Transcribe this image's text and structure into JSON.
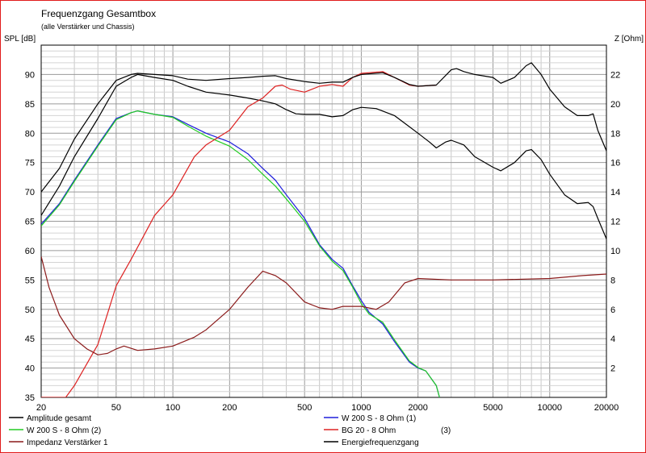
{
  "chart_data": {
    "type": "line",
    "title": "Frequenzgang Gesamtbox",
    "subtitle": "(alle Verstärker und Chassis)",
    "y_left_label": "SPL [dB]",
    "y_right_label": "Z [Ohm]",
    "x_scale": "log",
    "xlim": [
      20,
      20000
    ],
    "ylim_left": [
      35,
      95
    ],
    "ylim_right": [
      0,
      24
    ],
    "grid": true,
    "x_ticks": [
      20,
      50,
      100,
      200,
      500,
      1000,
      2000,
      5000,
      10000,
      20000
    ],
    "y_left_ticks": [
      35,
      40,
      45,
      50,
      55,
      60,
      65,
      70,
      75,
      80,
      85,
      90
    ],
    "y_right_ticks": [
      2,
      4,
      6,
      8,
      10,
      12,
      14,
      16,
      18,
      20,
      22
    ],
    "legend_position": "bottom",
    "series": [
      {
        "name": "Amplitude gesamt",
        "color": "#000000",
        "axis": "left",
        "points": [
          [
            20,
            66
          ],
          [
            25,
            71
          ],
          [
            30,
            76
          ],
          [
            40,
            82.5
          ],
          [
            50,
            88
          ],
          [
            60,
            89.5
          ],
          [
            65,
            90
          ],
          [
            80,
            89.5
          ],
          [
            100,
            89
          ],
          [
            120,
            88
          ],
          [
            150,
            87
          ],
          [
            200,
            86.5
          ],
          [
            250,
            86
          ],
          [
            300,
            85.5
          ],
          [
            350,
            85
          ],
          [
            400,
            84
          ],
          [
            450,
            83.3
          ],
          [
            500,
            83.2
          ],
          [
            600,
            83.2
          ],
          [
            700,
            82.8
          ],
          [
            800,
            83
          ],
          [
            900,
            84
          ],
          [
            1000,
            84.4
          ],
          [
            1200,
            84.2
          ],
          [
            1500,
            83
          ],
          [
            2000,
            80
          ],
          [
            2300,
            78.5
          ],
          [
            2500,
            77.5
          ],
          [
            2800,
            78.5
          ],
          [
            3000,
            78.8
          ],
          [
            3500,
            78
          ],
          [
            4000,
            76
          ],
          [
            5000,
            74.2
          ],
          [
            5500,
            73.6
          ],
          [
            6500,
            75
          ],
          [
            7500,
            77
          ],
          [
            8000,
            77.2
          ],
          [
            9000,
            75.5
          ],
          [
            10000,
            73
          ],
          [
            12000,
            69.5
          ],
          [
            14000,
            68
          ],
          [
            16000,
            68.2
          ],
          [
            17000,
            67.5
          ],
          [
            18000,
            65.5
          ],
          [
            20000,
            62
          ]
        ]
      },
      {
        "name": "W 200 S - 8 Ohm (1)",
        "color": "#1e1edc",
        "axis": "left",
        "points": [
          [
            20,
            64.5
          ],
          [
            25,
            68
          ],
          [
            30,
            72
          ],
          [
            40,
            78
          ],
          [
            50,
            82.5
          ],
          [
            60,
            83.5
          ],
          [
            65,
            83.8
          ],
          [
            80,
            83.2
          ],
          [
            100,
            82.8
          ],
          [
            120,
            81.5
          ],
          [
            150,
            80
          ],
          [
            200,
            78.5
          ],
          [
            250,
            76.5
          ],
          [
            300,
            74
          ],
          [
            350,
            72
          ],
          [
            400,
            69.5
          ],
          [
            500,
            65.5
          ],
          [
            600,
            61
          ],
          [
            700,
            58.5
          ],
          [
            800,
            57
          ],
          [
            900,
            54
          ],
          [
            1000,
            51.5
          ],
          [
            1100,
            49.5
          ],
          [
            1300,
            47.5
          ],
          [
            1500,
            44.5
          ],
          [
            1800,
            41
          ],
          [
            2000,
            40
          ],
          [
            2200,
            39.5
          ],
          [
            2500,
            37
          ],
          [
            2600,
            35
          ]
        ]
      },
      {
        "name": "W 200 S - 8 Ohm (2)",
        "color": "#22cc22",
        "axis": "left",
        "points": [
          [
            20,
            64.2
          ],
          [
            25,
            67.8
          ],
          [
            30,
            71.8
          ],
          [
            40,
            77.8
          ],
          [
            50,
            82.3
          ],
          [
            60,
            83.5
          ],
          [
            65,
            83.8
          ],
          [
            80,
            83.2
          ],
          [
            100,
            82.7
          ],
          [
            120,
            81.2
          ],
          [
            150,
            79.5
          ],
          [
            200,
            77.8
          ],
          [
            250,
            75.5
          ],
          [
            300,
            73
          ],
          [
            350,
            71
          ],
          [
            400,
            68.8
          ],
          [
            500,
            65
          ],
          [
            600,
            60.8
          ],
          [
            700,
            58.2
          ],
          [
            800,
            56.6
          ],
          [
            900,
            53.8
          ],
          [
            1000,
            51
          ],
          [
            1100,
            49.2
          ],
          [
            1300,
            47.8
          ],
          [
            1500,
            44.8
          ],
          [
            1800,
            41.2
          ],
          [
            2000,
            40.1
          ],
          [
            2200,
            39.5
          ],
          [
            2500,
            37
          ],
          [
            2600,
            35
          ]
        ]
      },
      {
        "name": "BG 20 - 8 Ohm",
        "color": "#dd2222",
        "axis": "left",
        "points": [
          [
            20,
            35
          ],
          [
            27,
            35
          ],
          [
            30,
            37
          ],
          [
            40,
            44
          ],
          [
            50,
            54
          ],
          [
            60,
            58.5
          ],
          [
            70,
            62.5
          ],
          [
            80,
            66
          ],
          [
            100,
            69.5
          ],
          [
            130,
            76
          ],
          [
            150,
            78
          ],
          [
            200,
            80.5
          ],
          [
            250,
            84.5
          ],
          [
            300,
            86
          ],
          [
            350,
            88
          ],
          [
            380,
            88.2
          ],
          [
            420,
            87.5
          ],
          [
            500,
            87
          ],
          [
            600,
            88
          ],
          [
            700,
            88.3
          ],
          [
            800,
            88
          ],
          [
            900,
            89.5
          ],
          [
            1000,
            90.2
          ],
          [
            1300,
            90.5
          ],
          [
            1500,
            89.5
          ],
          [
            1800,
            88.2
          ],
          [
            2000,
            88
          ],
          [
            2500,
            88.2
          ]
        ]
      },
      {
        "name": "Impedanz Verstärker 1",
        "color": "#8b1a1a",
        "axis": "right",
        "points": [
          [
            20,
            9.6
          ],
          [
            22,
            7.5
          ],
          [
            25,
            5.6
          ],
          [
            30,
            4
          ],
          [
            35,
            3.3
          ],
          [
            40,
            2.9
          ],
          [
            45,
            3
          ],
          [
            50,
            3.3
          ],
          [
            55,
            3.5
          ],
          [
            65,
            3.2
          ],
          [
            80,
            3.3
          ],
          [
            100,
            3.5
          ],
          [
            130,
            4.1
          ],
          [
            150,
            4.6
          ],
          [
            200,
            6
          ],
          [
            250,
            7.5
          ],
          [
            300,
            8.6
          ],
          [
            350,
            8.3
          ],
          [
            400,
            7.8
          ],
          [
            500,
            6.5
          ],
          [
            600,
            6.1
          ],
          [
            700,
            6
          ],
          [
            800,
            6.2
          ],
          [
            1000,
            6.2
          ],
          [
            1200,
            6
          ],
          [
            1400,
            6.5
          ],
          [
            1700,
            7.8
          ],
          [
            2000,
            8.1
          ],
          [
            3000,
            8
          ],
          [
            5000,
            8
          ],
          [
            10000,
            8.1
          ],
          [
            15000,
            8.3
          ],
          [
            20000,
            8.4
          ]
        ]
      },
      {
        "name": "Energiefrequenzgang",
        "color": "#000000",
        "axis": "left",
        "points": [
          [
            20,
            70
          ],
          [
            25,
            74
          ],
          [
            30,
            79
          ],
          [
            40,
            85
          ],
          [
            50,
            89
          ],
          [
            60,
            90
          ],
          [
            65,
            90.2
          ],
          [
            80,
            90
          ],
          [
            100,
            89.8
          ],
          [
            120,
            89.2
          ],
          [
            150,
            89
          ],
          [
            200,
            89.3
          ],
          [
            250,
            89.5
          ],
          [
            300,
            89.7
          ],
          [
            350,
            89.8
          ],
          [
            400,
            89.3
          ],
          [
            500,
            88.8
          ],
          [
            600,
            88.5
          ],
          [
            700,
            88.7
          ],
          [
            800,
            88.7
          ],
          [
            900,
            89.5
          ],
          [
            1000,
            90
          ],
          [
            1300,
            90.3
          ],
          [
            1500,
            89.5
          ],
          [
            1800,
            88.3
          ],
          [
            2000,
            88
          ],
          [
            2500,
            88.2
          ],
          [
            3000,
            90.8
          ],
          [
            3200,
            91
          ],
          [
            3500,
            90.5
          ],
          [
            4000,
            90
          ],
          [
            5000,
            89.5
          ],
          [
            5500,
            88.5
          ],
          [
            6500,
            89.5
          ],
          [
            7500,
            91.5
          ],
          [
            8000,
            92
          ],
          [
            9000,
            90
          ],
          [
            10000,
            87.5
          ],
          [
            12000,
            84.5
          ],
          [
            14000,
            83
          ],
          [
            16000,
            83
          ],
          [
            17000,
            83.3
          ],
          [
            18000,
            80.5
          ],
          [
            20000,
            77
          ]
        ]
      }
    ],
    "legend": [
      {
        "label": "Amplitude gesamt",
        "color": "#000000",
        "note": ""
      },
      {
        "label": "W 200 S - 8 Ohm (1)",
        "color": "#1e1edc",
        "note": ""
      },
      {
        "label": "W 200 S - 8 Ohm (2)",
        "color": "#22cc22",
        "note": ""
      },
      {
        "label": "BG 20 - 8 Ohm",
        "color": "#dd2222",
        "note": "(3)"
      },
      {
        "label": "Impedanz Verstärker 1",
        "color": "#8b1a1a",
        "note": ""
      },
      {
        "label": "Energiefrequenzgang",
        "color": "#000000",
        "note": ""
      }
    ]
  }
}
